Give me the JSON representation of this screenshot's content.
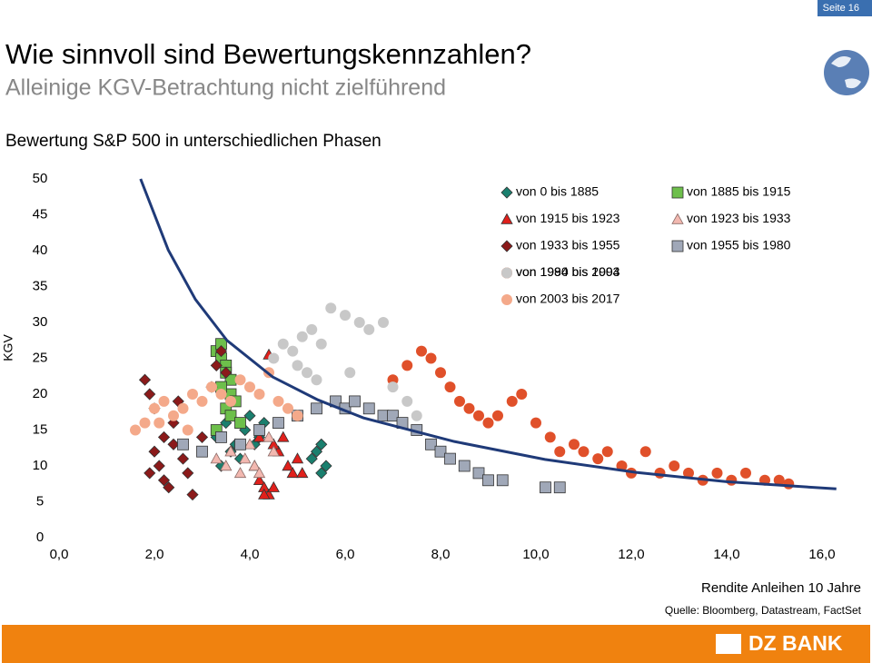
{
  "page": {
    "page_number": "Seite 16",
    "title": "Wie sinnvoll sind Bewertungskennzahlen?",
    "subtitle": "Alleinige KGV-Betrachtung nicht zielführend",
    "source": "Quelle: Bloomberg, Datastream, FactSet",
    "logo": "DZ BANK"
  },
  "chart_data": {
    "type": "scatter",
    "title": "Bewertung S&P 500 in unterschiedlichen Phasen",
    "y_label": "KGV",
    "x_label": "Rendite Anleihen 10 Jahre",
    "xlim": [
      0,
      16
    ],
    "ylim": [
      0,
      50
    ],
    "xticks": [
      {
        "value": 0,
        "label": "0,0"
      },
      {
        "value": 2,
        "label": "2,0"
      },
      {
        "value": 4,
        "label": "4,0"
      },
      {
        "value": 6,
        "label": "6,0"
      },
      {
        "value": 8,
        "label": "8,0"
      },
      {
        "value": 10,
        "label": "10,0"
      },
      {
        "value": 12,
        "label": "12,0"
      },
      {
        "value": 14,
        "label": "14,0"
      },
      {
        "value": 16,
        "label": "16,0"
      }
    ],
    "yticks": [
      0,
      5,
      10,
      15,
      20,
      25,
      30,
      35,
      40,
      45,
      50
    ],
    "series": [
      {
        "name": "von 0 bis 1885",
        "color": "#1a7f6e",
        "marker": "diamond",
        "x": [
          3.3,
          3.5,
          3.7,
          3.9,
          4.0,
          4.2,
          3.6,
          3.8,
          4.1,
          5.3,
          5.4,
          5.5,
          5.6,
          5.5,
          3.4,
          4.3
        ],
        "values": [
          14,
          16,
          13,
          15,
          17,
          14,
          12,
          11,
          13,
          11,
          12,
          13,
          10,
          9,
          10,
          16
        ]
      },
      {
        "name": "von 1885 bis 1915",
        "color": "#6dbf4b",
        "marker": "square",
        "x": [
          3.3,
          3.4,
          3.4,
          3.5,
          3.5,
          3.6,
          3.6,
          3.7,
          3.4,
          3.5,
          3.6,
          3.8,
          3.3
        ],
        "values": [
          26,
          27,
          25,
          24,
          23,
          22,
          20,
          19,
          21,
          18,
          17,
          16,
          15
        ]
      },
      {
        "name": "von 1915 bis 1923",
        "color": "#e0201b",
        "marker": "triangle",
        "x": [
          4.1,
          4.2,
          4.3,
          4.4,
          4.5,
          4.6,
          4.7,
          4.8,
          4.9,
          5.0,
          5.1,
          4.4,
          4.5,
          4.2,
          4.3
        ],
        "values": [
          10,
          8,
          7,
          6,
          7,
          12,
          14,
          10,
          9,
          11,
          9,
          25.5,
          13,
          14,
          6
        ]
      },
      {
        "name": "von 1923 bis 1933",
        "color": "#f2b8b0",
        "marker": "triangle-outline",
        "x": [
          3.3,
          3.5,
          3.6,
          3.8,
          3.9,
          4.0,
          4.1,
          4.2,
          4.4,
          4.5
        ],
        "values": [
          11,
          10,
          12,
          9,
          11,
          13,
          10,
          9,
          14,
          12
        ]
      },
      {
        "name": "von 1933 bis 1955",
        "color": "#8b1a1a",
        "marker": "diamond",
        "x": [
          1.8,
          1.9,
          2.0,
          2.0,
          2.1,
          2.2,
          2.3,
          2.4,
          2.5,
          2.6,
          2.7,
          2.8,
          3.0,
          3.2,
          3.3,
          3.4,
          3.5,
          2.2,
          2.4,
          1.9
        ],
        "values": [
          22,
          20,
          18,
          12,
          10,
          8,
          7,
          16,
          19,
          11,
          9,
          6,
          14,
          21,
          24,
          26,
          23,
          14,
          13,
          9
        ]
      },
      {
        "name": "von 1955 bis 1980",
        "color": "#a0a8b8",
        "marker": "square",
        "x": [
          2.6,
          3.0,
          3.4,
          3.8,
          4.2,
          4.6,
          5.0,
          5.4,
          5.8,
          6.0,
          6.2,
          6.5,
          6.8,
          7.0,
          7.2,
          7.5,
          7.8,
          8.0,
          8.2,
          8.5,
          8.8,
          9.0,
          9.3,
          10.2,
          10.5
        ],
        "values": [
          13,
          12,
          14,
          13,
          15,
          16,
          17,
          18,
          19,
          18,
          19,
          18,
          17,
          17,
          16,
          15,
          13,
          12,
          11,
          10,
          9,
          8,
          8,
          7,
          7
        ]
      },
      {
        "name": "von 1980 bis 1994",
        "color": "#e0502a",
        "marker": "circle",
        "x": [
          7.0,
          7.3,
          7.6,
          7.8,
          8.0,
          8.2,
          8.4,
          8.6,
          8.8,
          9.0,
          9.2,
          9.5,
          9.7,
          10.0,
          10.3,
          10.5,
          10.8,
          11.0,
          11.3,
          11.5,
          11.8,
          12.0,
          12.3,
          12.6,
          12.9,
          13.2,
          13.5,
          13.8,
          14.1,
          14.4,
          14.8,
          15.1,
          15.3
        ],
        "values": [
          22,
          24,
          26,
          25,
          23,
          21,
          19,
          18,
          17,
          16,
          17,
          19,
          20,
          16,
          14,
          12,
          13,
          12,
          11,
          12,
          10,
          9,
          12,
          9,
          10,
          9,
          8,
          9,
          8,
          9,
          8,
          8,
          7.5
        ]
      },
      {
        "name": "von 1994 bis 2003",
        "color": "#c8c8c8",
        "marker": "circle",
        "x": [
          4.5,
          4.7,
          4.9,
          5.1,
          5.3,
          5.5,
          5.7,
          6.0,
          6.3,
          6.5,
          6.8,
          5.0,
          5.2,
          5.4,
          6.1,
          7.0,
          7.3,
          7.5
        ],
        "values": [
          25,
          27,
          26,
          28,
          29,
          27,
          32,
          31,
          30,
          29,
          30,
          24,
          23,
          22,
          23,
          21,
          19,
          17
        ]
      },
      {
        "name": "von 2003 bis 2017",
        "color": "#f4a98a",
        "marker": "circle",
        "x": [
          1.6,
          1.8,
          2.0,
          2.2,
          2.4,
          2.6,
          2.8,
          3.0,
          3.2,
          3.4,
          3.6,
          3.8,
          4.0,
          4.2,
          4.4,
          4.6,
          4.8,
          5.0,
          2.1,
          2.7
        ],
        "values": [
          15,
          16,
          18,
          19,
          17,
          18,
          20,
          19,
          21,
          20,
          19,
          22,
          21,
          20,
          23,
          19,
          18,
          17,
          16,
          15
        ]
      }
    ],
    "curve": {
      "color": "#1f3a78",
      "x": [
        1.71,
        2.29,
        2.86,
        3.52,
        4.48,
        5.43,
        6.38,
        8.29,
        10.19,
        12.1,
        14.0,
        16.3
      ],
      "values": [
        50,
        40.1,
        33.2,
        27.5,
        22.4,
        19.2,
        16.7,
        13.4,
        10.9,
        9.1,
        7.8,
        6.8
      ]
    }
  }
}
